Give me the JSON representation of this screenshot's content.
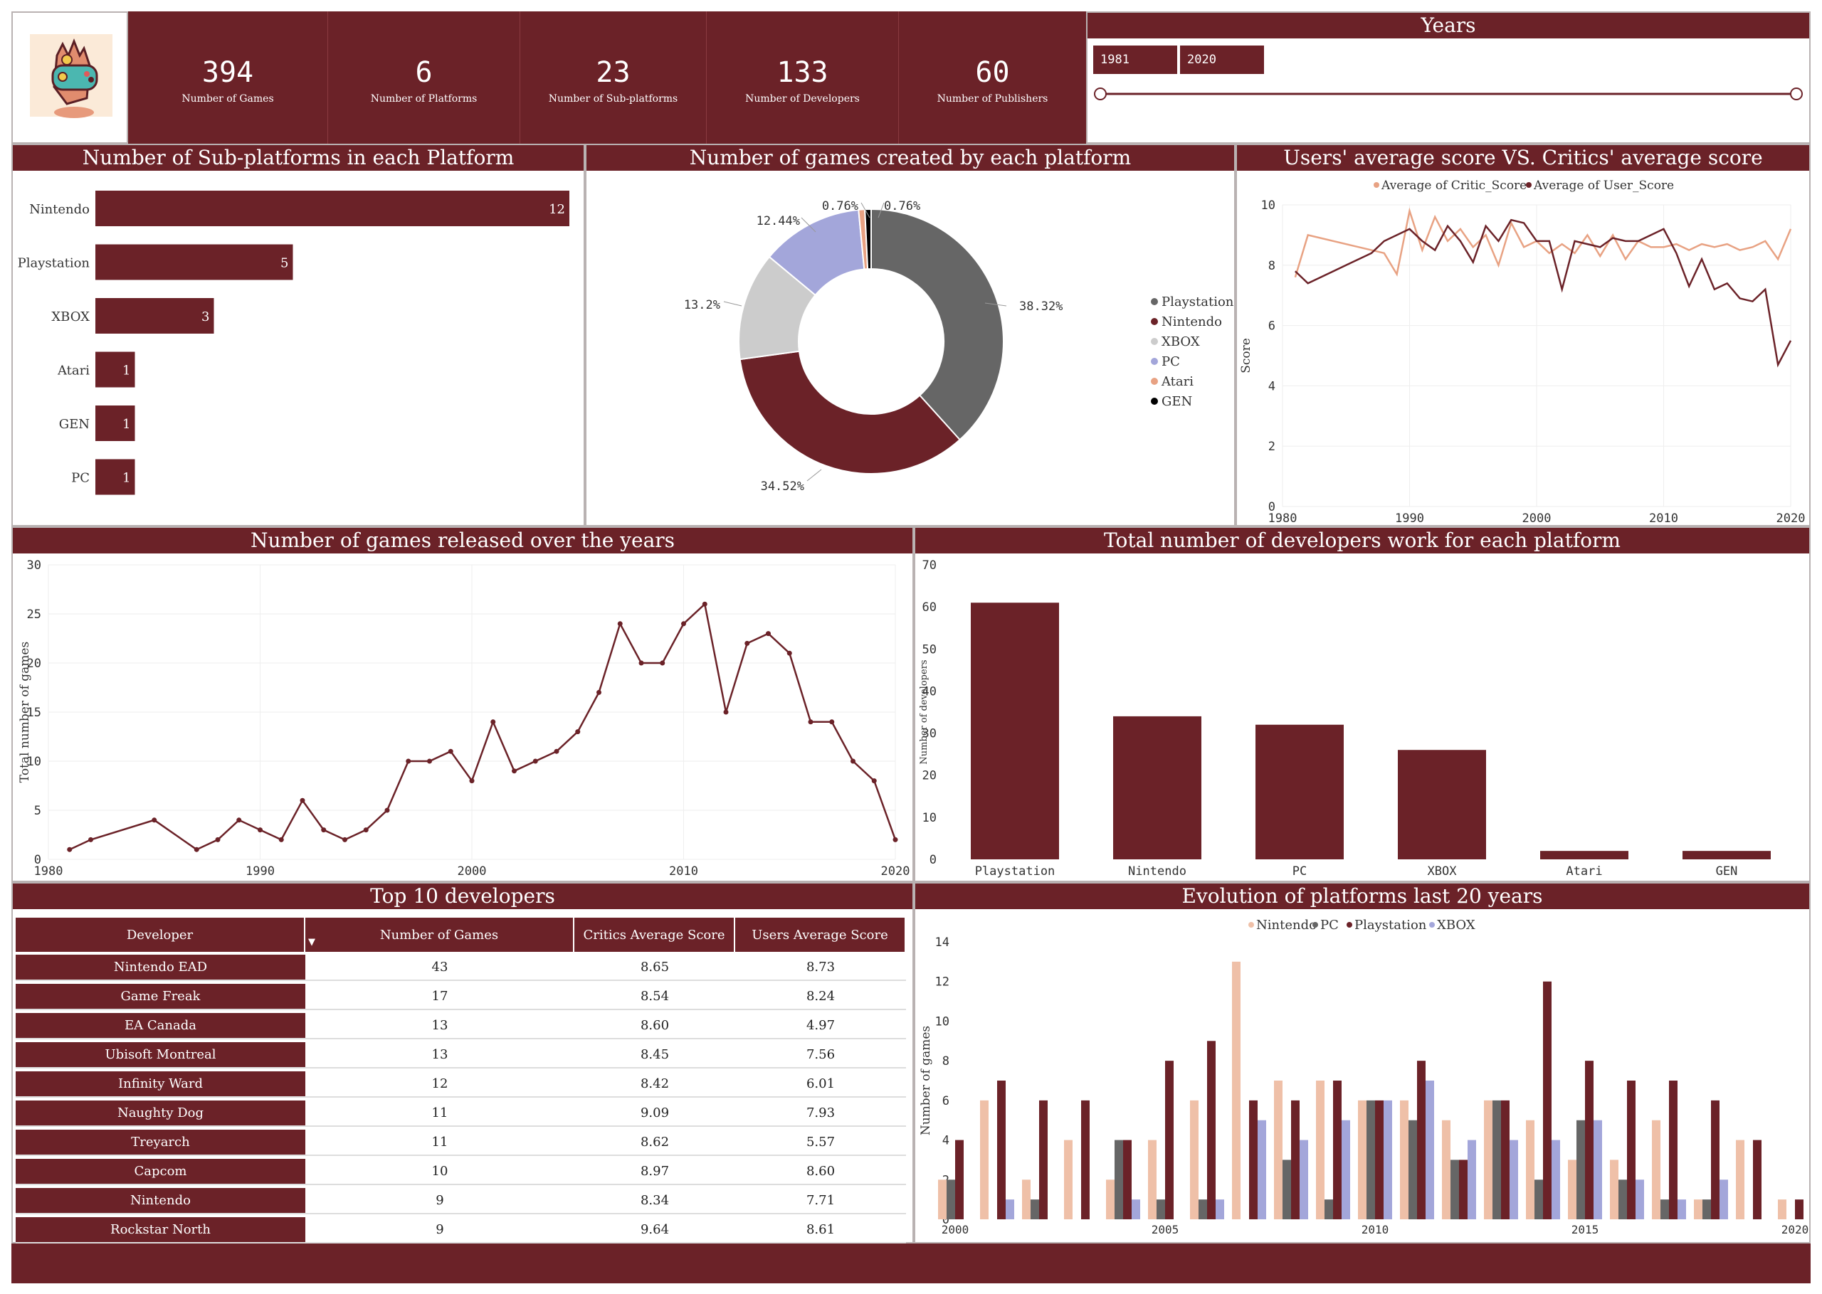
{
  "kpis": [
    {
      "value": "394",
      "label": "Number of Games"
    },
    {
      "value": "6",
      "label": "Number of Platforms"
    },
    {
      "value": "23",
      "label": "Number of Sub-platforms"
    },
    {
      "value": "133",
      "label": "Number of Developers"
    },
    {
      "value": "60",
      "label": "Number of Publishers"
    }
  ],
  "years": {
    "title": "Years",
    "from": "1981",
    "to": "2020"
  },
  "colors": {
    "accent": "#6b2228",
    "playstation": "#666666",
    "nintendo": "#6b2228",
    "xbox": "#cccccc",
    "pc": "#a3a6da",
    "atari": "#e8a283",
    "gen": "#000000",
    "nintendo_light": "#efc0a8",
    "critic": "#e8a283"
  },
  "titles": {
    "subplatforms": "Number of Sub-platforms in each Platform",
    "pie": "Number of games created by each platform",
    "scores": "Users' average score VS. Critics' average score",
    "released": "Number of games released over the years",
    "developers": "Total number of developers work for each platform",
    "top10": "Top 10 developers",
    "evolution": "Evolution of platforms last 20 years"
  },
  "table": {
    "headers": [
      "Developer",
      "Number of Games",
      "Critics Average Score",
      "Users Average Score"
    ],
    "sort_icon": "sort-desc-icon",
    "rows": [
      {
        "developer": "Nintendo EAD",
        "games": "43",
        "critics": "8.65",
        "users": "8.73"
      },
      {
        "developer": "Game Freak",
        "games": "17",
        "critics": "8.54",
        "users": "8.24"
      },
      {
        "developer": "EA Canada",
        "games": "13",
        "critics": "8.60",
        "users": "4.97"
      },
      {
        "developer": "Ubisoft Montreal",
        "games": "13",
        "critics": "8.45",
        "users": "7.56"
      },
      {
        "developer": "Infinity Ward",
        "games": "12",
        "critics": "8.42",
        "users": "6.01"
      },
      {
        "developer": "Naughty Dog",
        "games": "11",
        "critics": "9.09",
        "users": "7.93"
      },
      {
        "developer": "Treyarch",
        "games": "11",
        "critics": "8.62",
        "users": "5.57"
      },
      {
        "developer": "Capcom",
        "games": "10",
        "critics": "8.97",
        "users": "8.60"
      },
      {
        "developer": "Nintendo",
        "games": "9",
        "critics": "8.34",
        "users": "7.71"
      },
      {
        "developer": "Rockstar North",
        "games": "9",
        "critics": "9.64",
        "users": "8.61"
      }
    ]
  },
  "chart_data": [
    {
      "id": "subplatforms",
      "type": "bar",
      "orientation": "horizontal",
      "title": "Number of Sub-platforms in each Platform",
      "categories": [
        "Nintendo",
        "Playstation",
        "XBOX",
        "Atari",
        "GEN",
        "PC"
      ],
      "values": [
        12,
        5,
        3,
        1,
        1,
        1
      ],
      "xlim": [
        0,
        12
      ]
    },
    {
      "id": "pie",
      "type": "pie",
      "donut": true,
      "title": "Number of games created by each platform",
      "labels": [
        "Playstation",
        "Nintendo",
        "XBOX",
        "PC",
        "Atari",
        "GEN"
      ],
      "values": [
        38.32,
        34.52,
        13.2,
        12.44,
        0.76,
        0.76
      ],
      "value_labels": [
        "38.32%",
        "34.52%",
        "13.2%",
        "12.44%",
        "0.76%",
        "0.76%"
      ],
      "legend": "right"
    },
    {
      "id": "scores",
      "type": "line",
      "title": "Users' average score VS. Critics' average score",
      "ylabel": "Score",
      "xlim": [
        1980,
        2020
      ],
      "ylim": [
        0,
        10
      ],
      "xticks": [
        1980,
        1990,
        2000,
        2010,
        2020
      ],
      "yticks": [
        0,
        2,
        4,
        6,
        8,
        10
      ],
      "legend": "top",
      "series": [
        {
          "name": "Average of Critic_Score",
          "x": [
            1981,
            1982,
            1988,
            1989,
            1990,
            1991,
            1992,
            1993,
            1994,
            1995,
            1996,
            1997,
            1998,
            1999,
            2000,
            2001,
            2002,
            2003,
            2004,
            2005,
            2006,
            2007,
            2008,
            2009,
            2010,
            2011,
            2012,
            2013,
            2014,
            2015,
            2016,
            2017,
            2018,
            2019,
            2020
          ],
          "y": [
            7.6,
            9.0,
            8.4,
            7.7,
            9.8,
            8.5,
            9.6,
            8.8,
            9.2,
            8.6,
            9.0,
            8.0,
            9.4,
            8.6,
            8.8,
            8.4,
            8.7,
            8.4,
            9.0,
            8.3,
            9.0,
            8.2,
            8.8,
            8.6,
            8.6,
            8.7,
            8.5,
            8.7,
            8.6,
            8.7,
            8.5,
            8.6,
            8.8,
            8.2,
            9.2
          ]
        },
        {
          "name": "Average of User_Score",
          "x": [
            1981,
            1982,
            1985,
            1987,
            1988,
            1990,
            1991,
            1992,
            1993,
            1994,
            1995,
            1996,
            1997,
            1998,
            1999,
            2000,
            2001,
            2002,
            2003,
            2004,
            2005,
            2006,
            2007,
            2008,
            2009,
            2010,
            2011,
            2012,
            2013,
            2014,
            2015,
            2016,
            2017,
            2018,
            2019,
            2020
          ],
          "y": [
            7.8,
            7.4,
            8.0,
            8.4,
            8.8,
            9.2,
            8.8,
            8.5,
            9.3,
            8.8,
            8.1,
            9.3,
            8.8,
            9.5,
            9.4,
            8.8,
            8.8,
            7.2,
            8.8,
            8.7,
            8.6,
            8.9,
            8.8,
            8.8,
            9.0,
            9.2,
            8.4,
            7.3,
            8.2,
            7.2,
            7.4,
            6.9,
            6.8,
            7.2,
            4.7,
            5.5
          ]
        }
      ]
    },
    {
      "id": "released",
      "type": "line",
      "title": "Number of games released over the years",
      "ylabel": "Total number of games",
      "xlim": [
        1980,
        2020
      ],
      "ylim": [
        0,
        30
      ],
      "xticks": [
        1980,
        1990,
        2000,
        2010,
        2020
      ],
      "yticks": [
        0,
        5,
        10,
        15,
        20,
        25,
        30
      ],
      "series": [
        {
          "name": "",
          "x": [
            1981,
            1982,
            1985,
            1987,
            1988,
            1989,
            1990,
            1991,
            1992,
            1993,
            1994,
            1995,
            1996,
            1997,
            1998,
            1999,
            2000,
            2001,
            2002,
            2003,
            2004,
            2005,
            2006,
            2007,
            2008,
            2009,
            2010,
            2011,
            2012,
            2013,
            2014,
            2015,
            2016,
            2017,
            2018,
            2019,
            2020
          ],
          "y": [
            1,
            2,
            4,
            1,
            2,
            4,
            3,
            2,
            6,
            3,
            2,
            3,
            5,
            10,
            10,
            11,
            8,
            14,
            9,
            10,
            11,
            13,
            17,
            24,
            20,
            20,
            24,
            26,
            15,
            22,
            23,
            21,
            14,
            14,
            10,
            8,
            2
          ]
        }
      ]
    },
    {
      "id": "developers",
      "type": "bar",
      "title": "Total number of developers work for each platform",
      "ylabel": "Number of developers",
      "categories": [
        "Playstation",
        "Nintendo",
        "PC",
        "XBOX",
        "Atari",
        "GEN"
      ],
      "values": [
        61,
        34,
        32,
        26,
        2,
        2
      ],
      "ylim": [
        0,
        70
      ],
      "yticks": [
        0,
        10,
        20,
        30,
        40,
        50,
        60,
        70
      ]
    },
    {
      "id": "evolution",
      "type": "bar",
      "grouped": true,
      "title": "Evolution of platforms last 20 years",
      "ylabel": "Number of games",
      "categories": [
        "2000",
        "2001",
        "2002",
        "2003",
        "2004",
        "2005",
        "2006",
        "2007",
        "2008",
        "2009",
        "2010",
        "2011",
        "2012",
        "2013",
        "2014",
        "2015",
        "2016",
        "2017",
        "2018",
        "2019",
        "2020"
      ],
      "xtick_labels": [
        "2000",
        "2005",
        "2010",
        "2015",
        "2020"
      ],
      "ylim": [
        0,
        14
      ],
      "yticks": [
        0,
        2,
        4,
        6,
        8,
        10,
        12,
        14
      ],
      "legend": "top",
      "series": [
        {
          "name": "Nintendo",
          "values": [
            2,
            6,
            2,
            4,
            2,
            4,
            6,
            13,
            7,
            7,
            6,
            6,
            5,
            6,
            5,
            3,
            3,
            5,
            1,
            4,
            1
          ]
        },
        {
          "name": "PC",
          "values": [
            2,
            0,
            1,
            0,
            4,
            1,
            1,
            0,
            3,
            1,
            6,
            5,
            3,
            6,
            2,
            5,
            2,
            1,
            1,
            0,
            0
          ]
        },
        {
          "name": "Playstation",
          "values": [
            4,
            7,
            6,
            6,
            4,
            8,
            9,
            6,
            6,
            7,
            6,
            8,
            3,
            6,
            12,
            8,
            7,
            7,
            6,
            4,
            1
          ]
        },
        {
          "name": "XBOX",
          "values": [
            0,
            1,
            0,
            0,
            1,
            0,
            1,
            5,
            4,
            5,
            6,
            7,
            4,
            4,
            4,
            5,
            2,
            1,
            2,
            0,
            0
          ]
        }
      ]
    }
  ]
}
